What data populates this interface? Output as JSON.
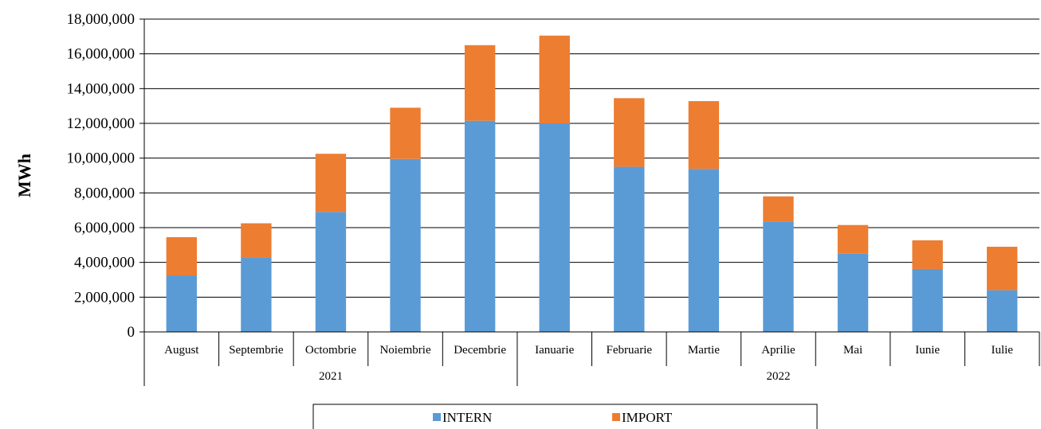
{
  "chart_data": {
    "type": "bar",
    "stacked": true,
    "ylabel": "MWh",
    "ylim": [
      0,
      18000000
    ],
    "y_ticks": [
      "0",
      "2,000,000",
      "4,000,000",
      "6,000,000",
      "8,000,000",
      "10,000,000",
      "12,000,000",
      "14,000,000",
      "16,000,000",
      "18,000,000"
    ],
    "grid": true,
    "legend_position": "bottom",
    "categories": [
      "August",
      "Septembrie",
      "Octombrie",
      "Noiembrie",
      "Decembrie",
      "Ianuarie",
      "Februarie",
      "Martie",
      "Aprilie",
      "Mai",
      "Iunie",
      "Iulie"
    ],
    "groups": [
      {
        "label": "2021",
        "count": 5
      },
      {
        "label": "2022",
        "count": 7
      }
    ],
    "series": [
      {
        "name": "INTERN",
        "color": "#5b9bd5",
        "values": [
          3250000,
          4300000,
          6900000,
          9950000,
          12150000,
          12000000,
          9500000,
          9380000,
          6350000,
          4500000,
          3620000,
          2400000
        ]
      },
      {
        "name": "IMPORT",
        "color": "#ed7d31",
        "values": [
          2200000,
          1950000,
          3350000,
          2950000,
          4350000,
          5050000,
          3950000,
          3900000,
          1450000,
          1650000,
          1650000,
          2500000
        ]
      }
    ]
  }
}
